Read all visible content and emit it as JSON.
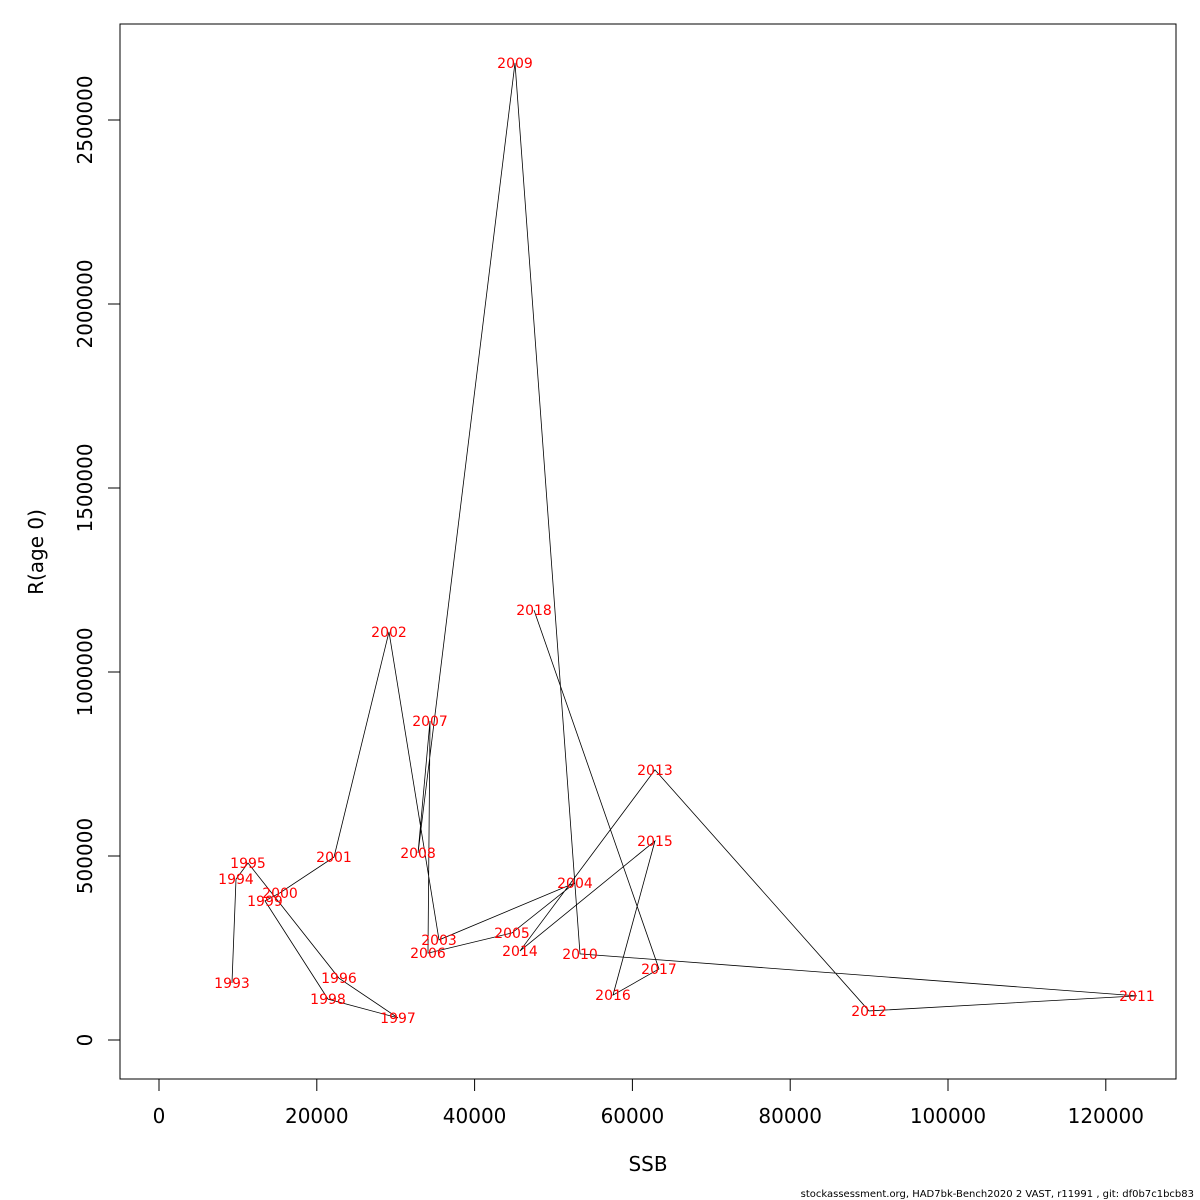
{
  "chart_data": {
    "type": "line",
    "title": "",
    "xlabel": "SSB",
    "ylabel": "R(age 0)",
    "xlim": [
      -5000,
      129000
    ],
    "ylim": [
      -105000,
      2775000
    ],
    "xticks": [
      0,
      20000,
      40000,
      60000,
      80000,
      100000,
      120000
    ],
    "yticks": [
      0,
      500000,
      1000000,
      1500000,
      2000000,
      2500000
    ],
    "grid": false,
    "point_label_color": "#ff0000",
    "line_color": "#000000",
    "points": [
      {
        "year": "1993",
        "ssb": 9250,
        "r": 155000
      },
      {
        "year": "1994",
        "ssb": 9760,
        "r": 437000
      },
      {
        "year": "1995",
        "ssb": 11280,
        "r": 481000
      },
      {
        "year": "1996",
        "ssb": 22810,
        "r": 168000
      },
      {
        "year": "1997",
        "ssb": 30290,
        "r": 60000
      },
      {
        "year": "1998",
        "ssb": 21420,
        "r": 111000
      },
      {
        "year": "1999",
        "ssb": 13430,
        "r": 378000
      },
      {
        "year": "2000",
        "ssb": 15340,
        "r": 400000
      },
      {
        "year": "2001",
        "ssb": 22180,
        "r": 497000
      },
      {
        "year": "2002",
        "ssb": 29150,
        "r": 1109000
      },
      {
        "year": "2003",
        "ssb": 35490,
        "r": 272000
      },
      {
        "year": "2004",
        "ssb": 52720,
        "r": 427000
      },
      {
        "year": "2005",
        "ssb": 44740,
        "r": 291000
      },
      {
        "year": "2006",
        "ssb": 34090,
        "r": 236000
      },
      {
        "year": "2007",
        "ssb": 34350,
        "r": 867000
      },
      {
        "year": "2008",
        "ssb": 32830,
        "r": 508000
      },
      {
        "year": "2009",
        "ssb": 45120,
        "r": 2655000
      },
      {
        "year": "2010",
        "ssb": 53360,
        "r": 234000
      },
      {
        "year": "2011",
        "ssb": 123950,
        "r": 120000
      },
      {
        "year": "2012",
        "ssb": 89990,
        "r": 79000
      },
      {
        "year": "2013",
        "ssb": 62860,
        "r": 734000
      },
      {
        "year": "2014",
        "ssb": 45750,
        "r": 242000
      },
      {
        "year": "2015",
        "ssb": 62860,
        "r": 541000
      },
      {
        "year": "2016",
        "ssb": 57540,
        "r": 122000
      },
      {
        "year": "2017",
        "ssb": 63370,
        "r": 193000
      },
      {
        "year": "2018",
        "ssb": 47530,
        "r": 1168000
      }
    ]
  },
  "footer": "stockassessment.org, HAD7bk-Bench2020 2 VAST, r11991 , git: df0b7c1bcb83"
}
